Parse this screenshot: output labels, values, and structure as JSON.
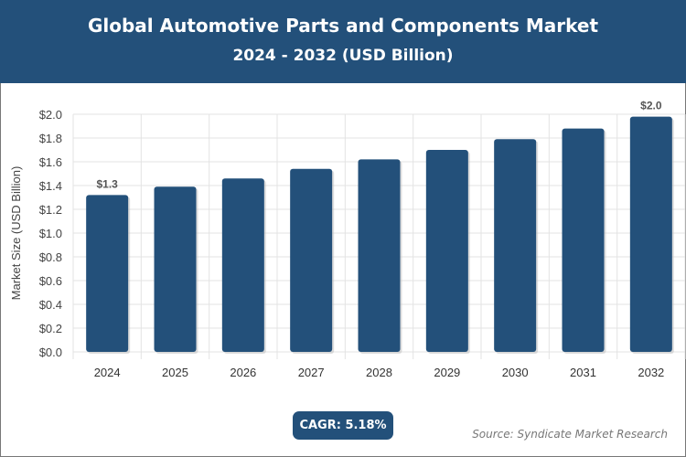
{
  "header": {
    "title": "Global Automotive Parts and Components Market",
    "subtitle": "2024 - 2032 (USD Billion)"
  },
  "chart_data": {
    "type": "bar",
    "title": "Global Automotive Parts and Components Market",
    "subtitle": "2024 - 2032 (USD Billion)",
    "ylabel": "Market Size (USD Billion)",
    "xlabel": "",
    "categories": [
      "2024",
      "2025",
      "2026",
      "2027",
      "2028",
      "2029",
      "2030",
      "2031",
      "2032"
    ],
    "values": [
      1.32,
      1.39,
      1.46,
      1.54,
      1.62,
      1.7,
      1.79,
      1.88,
      1.98
    ],
    "data_labels": {
      "0": "$1.3",
      "8": "$2.0"
    },
    "ylim": [
      0,
      2.0
    ],
    "yticks": [
      "$0.0",
      "$0.2",
      "$0.4",
      "$0.6",
      "$0.8",
      "$1.0",
      "$1.2",
      "$1.4",
      "$1.6",
      "$1.8",
      "$2.0"
    ],
    "grid": true,
    "bar_color": "#23507a"
  },
  "badge": {
    "cagr": "CAGR: 5.18%"
  },
  "footer": {
    "source": "Source: Syndicate Market Research"
  }
}
